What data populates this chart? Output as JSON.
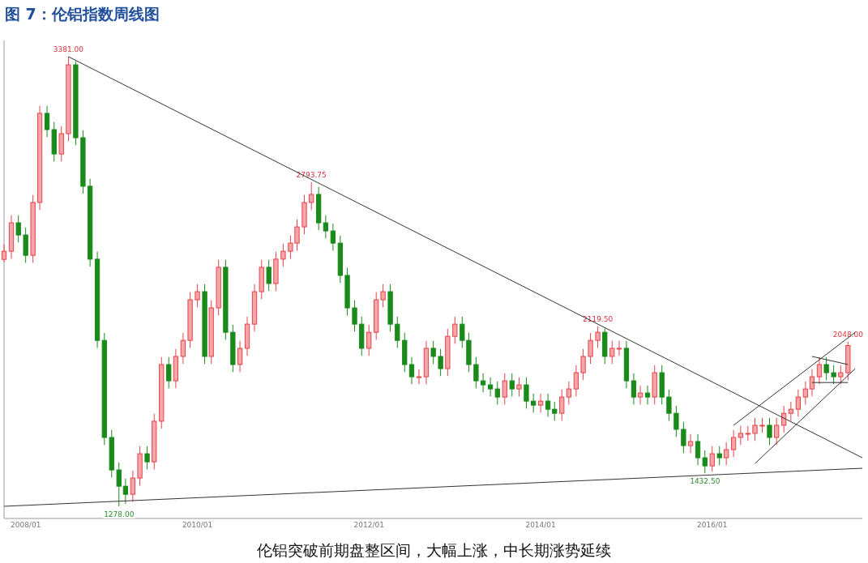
{
  "chart_data": {
    "type": "candlestick",
    "title": "图 7：伦铝指数周线图",
    "annotations": [
      {
        "text": "3381.00",
        "x": "2008-07",
        "y": 3381
      },
      {
        "text": "1278.00",
        "x": "2009-02",
        "y": 1278
      },
      {
        "text": "2793.75",
        "x": "2011-05",
        "y": 2793.75
      },
      {
        "text": "2119.50",
        "x": "2014-09",
        "y": 2119.5
      },
      {
        "text": "1432.50",
        "x": "2015-12",
        "y": 1432.5
      },
      {
        "text": "2048.00",
        "x": "2017-08",
        "y": 2048
      },
      "伦铝突破前期盘整区间，大幅上涨，中长期涨势延续"
    ],
    "xlim": [
      "2007-10",
      "2017-10"
    ],
    "xticks": [
      {
        "value": "2008-01",
        "label": "2008/01"
      },
      {
        "value": "2010-01",
        "label": "2010/01"
      },
      {
        "value": "2012-01",
        "label": "2012/01"
      },
      {
        "value": "2014-01",
        "label": "2014/01"
      },
      {
        "value": "2016-01",
        "label": "2016/01"
      }
    ],
    "x": [
      "2007-10",
      "2007-11",
      "2007-12",
      "2008-01",
      "2008-02",
      "2008-03",
      "2008-04",
      "2008-05",
      "2008-06",
      "2008-07",
      "2008-08",
      "2008-09",
      "2008-10",
      "2008-11",
      "2008-12",
      "2009-01",
      "2009-02",
      "2009-03",
      "2009-04",
      "2009-05",
      "2009-06",
      "2009-07",
      "2009-08",
      "2009-09",
      "2009-10",
      "2009-11",
      "2009-12",
      "2010-01",
      "2010-02",
      "2010-03",
      "2010-04",
      "2010-05",
      "2010-06",
      "2010-07",
      "2010-08",
      "2010-09",
      "2010-10",
      "2010-11",
      "2010-12",
      "2011-01",
      "2011-02",
      "2011-03",
      "2011-04",
      "2011-05",
      "2011-06",
      "2011-07",
      "2011-08",
      "2011-09",
      "2011-10",
      "2011-11",
      "2011-12",
      "2012-01",
      "2012-02",
      "2012-03",
      "2012-04",
      "2012-05",
      "2012-06",
      "2012-07",
      "2012-08",
      "2012-09",
      "2012-10",
      "2012-11",
      "2012-12",
      "2013-01",
      "2013-02",
      "2013-03",
      "2013-04",
      "2013-05",
      "2013-06",
      "2013-07",
      "2013-08",
      "2013-09",
      "2013-10",
      "2013-11",
      "2013-12",
      "2014-01",
      "2014-02",
      "2014-03",
      "2014-04",
      "2014-05",
      "2014-06",
      "2014-07",
      "2014-08",
      "2014-09",
      "2014-10",
      "2014-11",
      "2014-12",
      "2015-01",
      "2015-02",
      "2015-03",
      "2015-04",
      "2015-05",
      "2015-06",
      "2015-07",
      "2015-08",
      "2015-09",
      "2015-10",
      "2015-11",
      "2015-12",
      "2016-01",
      "2016-02",
      "2016-03",
      "2016-04",
      "2016-05",
      "2016-06",
      "2016-07",
      "2016-08",
      "2016-09",
      "2016-10",
      "2016-11",
      "2016-12",
      "2017-01",
      "2017-02",
      "2017-03",
      "2017-04",
      "2017-05",
      "2017-06",
      "2017-07",
      "2017-08"
    ],
    "ohlc": [
      [
        2433,
        2505,
        2420,
        2471
      ],
      [
        2471,
        2640,
        2436,
        2604
      ],
      [
        2604,
        2639,
        2512,
        2547
      ],
      [
        2547,
        2582,
        2417,
        2452
      ],
      [
        2452,
        2734,
        2417,
        2699
      ],
      [
        2699,
        3151,
        2664,
        3116
      ],
      [
        3116,
        3151,
        3005,
        3040
      ],
      [
        3040,
        3075,
        2891,
        2926
      ],
      [
        2926,
        3056,
        2891,
        3021
      ],
      [
        3021,
        3381,
        2986,
        3343
      ],
      [
        3343,
        3360,
        2967,
        3002
      ],
      [
        3002,
        3037,
        2740,
        2775
      ],
      [
        2775,
        2810,
        2399,
        2434
      ],
      [
        2434,
        2469,
        2019,
        2054
      ],
      [
        2054,
        2089,
        1565,
        1600
      ],
      [
        1600,
        1635,
        1413,
        1448
      ],
      [
        1448,
        1483,
        1278,
        1372
      ],
      [
        1372,
        1407,
        1290,
        1334
      ],
      [
        1334,
        1445,
        1299,
        1410
      ],
      [
        1410,
        1559,
        1375,
        1524
      ],
      [
        1524,
        1559,
        1451,
        1486
      ],
      [
        1486,
        1711,
        1451,
        1676
      ],
      [
        1676,
        1976,
        1641,
        1941
      ],
      [
        1941,
        1976,
        1830,
        1865
      ],
      [
        1865,
        2014,
        1830,
        1979
      ],
      [
        1979,
        2089,
        1944,
        2054
      ],
      [
        2054,
        2279,
        2019,
        2244
      ],
      [
        2244,
        2317,
        2209,
        2282
      ],
      [
        2282,
        2317,
        1944,
        1979
      ],
      [
        1979,
        2241,
        1944,
        2206
      ],
      [
        2206,
        2431,
        2171,
        2396
      ],
      [
        2396,
        2431,
        2057,
        2092
      ],
      [
        2092,
        2127,
        1906,
        1941
      ],
      [
        1941,
        2052,
        1906,
        2017
      ],
      [
        2017,
        2165,
        1982,
        2130
      ],
      [
        2130,
        2317,
        2095,
        2282
      ],
      [
        2282,
        2431,
        2247,
        2396
      ],
      [
        2396,
        2431,
        2285,
        2320
      ],
      [
        2320,
        2469,
        2285,
        2434
      ],
      [
        2434,
        2506,
        2399,
        2471
      ],
      [
        2471,
        2544,
        2436,
        2509
      ],
      [
        2509,
        2620,
        2474,
        2585
      ],
      [
        2585,
        2734,
        2550,
        2699
      ],
      [
        2699,
        2793.75,
        2664,
        2737
      ],
      [
        2737,
        2772,
        2569,
        2604
      ],
      [
        2604,
        2639,
        2531,
        2566
      ],
      [
        2566,
        2601,
        2474,
        2509
      ],
      [
        2509,
        2544,
        2323,
        2358
      ],
      [
        2358,
        2393,
        2171,
        2206
      ],
      [
        2206,
        2241,
        2095,
        2130
      ],
      [
        2130,
        2165,
        1982,
        2017
      ],
      [
        2017,
        2127,
        1982,
        2092
      ],
      [
        2092,
        2279,
        2057,
        2244
      ],
      [
        2244,
        2317,
        2209,
        2282
      ],
      [
        2282,
        2317,
        2095,
        2130
      ],
      [
        2130,
        2165,
        2019,
        2054
      ],
      [
        2054,
        2089,
        1906,
        1941
      ],
      [
        1941,
        1976,
        1849,
        1884
      ],
      [
        1884,
        1919,
        1849,
        1884
      ],
      [
        1884,
        2052,
        1849,
        2017
      ],
      [
        2017,
        2052,
        1944,
        1979
      ],
      [
        1979,
        2014,
        1887,
        1922
      ],
      [
        1922,
        2108,
        1887,
        2073
      ],
      [
        2073,
        2165,
        2038,
        2130
      ],
      [
        2130,
        2165,
        2019,
        2054
      ],
      [
        2054,
        2089,
        1906,
        1941
      ],
      [
        1941,
        1976,
        1830,
        1865
      ],
      [
        1865,
        1900,
        1811,
        1846
      ],
      [
        1846,
        1881,
        1792,
        1827
      ],
      [
        1827,
        1862,
        1754,
        1789
      ],
      [
        1789,
        1900,
        1754,
        1865
      ],
      [
        1865,
        1900,
        1792,
        1827
      ],
      [
        1827,
        1881,
        1792,
        1846
      ],
      [
        1846,
        1881,
        1735,
        1770
      ],
      [
        1770,
        1805,
        1716,
        1751
      ],
      [
        1751,
        1805,
        1716,
        1770
      ],
      [
        1770,
        1805,
        1697,
        1732
      ],
      [
        1732,
        1767,
        1678,
        1713
      ],
      [
        1713,
        1824,
        1678,
        1789
      ],
      [
        1789,
        1862,
        1754,
        1827
      ],
      [
        1827,
        1938,
        1792,
        1903
      ],
      [
        1903,
        2014,
        1868,
        1979
      ],
      [
        1979,
        2089,
        1944,
        2054
      ],
      [
        2054,
        2119.5,
        2019,
        2092
      ],
      [
        2092,
        2110,
        1944,
        1979
      ],
      [
        1979,
        2052,
        1944,
        2017
      ],
      [
        2017,
        2052,
        1982,
        2017
      ],
      [
        2017,
        2052,
        1830,
        1865
      ],
      [
        1865,
        1900,
        1754,
        1789
      ],
      [
        1789,
        1843,
        1754,
        1808
      ],
      [
        1808,
        1843,
        1754,
        1789
      ],
      [
        1789,
        1938,
        1754,
        1903
      ],
      [
        1903,
        1938,
        1754,
        1789
      ],
      [
        1789,
        1824,
        1678,
        1713
      ],
      [
        1713,
        1748,
        1603,
        1638
      ],
      [
        1638,
        1673,
        1527,
        1562
      ],
      [
        1562,
        1616,
        1527,
        1581
      ],
      [
        1581,
        1616,
        1470,
        1505
      ],
      [
        1505,
        1540,
        1432.5,
        1467
      ],
      [
        1467,
        1559,
        1440,
        1524
      ],
      [
        1524,
        1559,
        1470,
        1505
      ],
      [
        1505,
        1578,
        1470,
        1543
      ],
      [
        1543,
        1635,
        1508,
        1600
      ],
      [
        1600,
        1654,
        1565,
        1619
      ],
      [
        1619,
        1654,
        1584,
        1619
      ],
      [
        1619,
        1692,
        1584,
        1657
      ],
      [
        1657,
        1692,
        1622,
        1657
      ],
      [
        1657,
        1692,
        1565,
        1600
      ],
      [
        1600,
        1692,
        1565,
        1657
      ],
      [
        1657,
        1748,
        1622,
        1713
      ],
      [
        1713,
        1767,
        1678,
        1732
      ],
      [
        1732,
        1824,
        1697,
        1789
      ],
      [
        1789,
        1862,
        1754,
        1827
      ],
      [
        1827,
        1919,
        1792,
        1884
      ],
      [
        1884,
        1976,
        1849,
        1941
      ],
      [
        1941,
        1976,
        1868,
        1903
      ],
      [
        1903,
        1938,
        1849,
        1884
      ],
      [
        1884,
        1938,
        1849,
        1903
      ],
      [
        1903,
        2048,
        1868,
        2030
      ]
    ],
    "series": [
      {
        "type": "line",
        "color": "#333333",
        "x": [
          "2008-07",
          "2017-10"
        ],
        "values": [
          3381,
          1505
        ]
      },
      {
        "type": "line",
        "color": "#333333",
        "x": [
          "2007-10",
          "2017-10"
        ],
        "values": [
          1278,
          1456
        ]
      },
      {
        "type": "line",
        "color": "#333333",
        "x": [
          "2016-04",
          "2017-09"
        ],
        "values": [
          1657,
          2092
        ]
      },
      {
        "type": "line",
        "color": "#333333",
        "x": [
          "2016-07",
          "2017-09"
        ],
        "values": [
          1478,
          1922
        ]
      },
      {
        "type": "line",
        "color": "#333333",
        "x": [
          "2017-03",
          "2017-08"
        ],
        "values": [
          1979,
          1941
        ]
      },
      {
        "type": "line",
        "color": "#333333",
        "x": [
          "2017-03",
          "2017-08"
        ],
        "values": [
          1857,
          1857
        ]
      }
    ]
  }
}
